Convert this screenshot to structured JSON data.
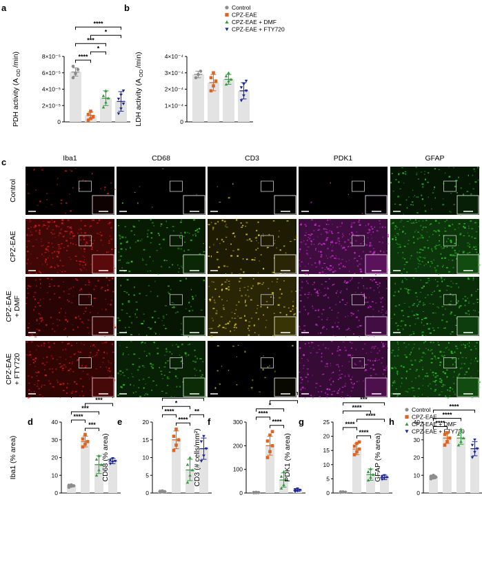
{
  "panel_letters": [
    "a",
    "b",
    "c",
    "d",
    "e",
    "f",
    "g",
    "h"
  ],
  "legend": [
    {
      "label": "Control",
      "color": "#8c8c8c",
      "marker": "circle"
    },
    {
      "label": "CPZ-EAE",
      "color": "#e0641e",
      "marker": "square"
    },
    {
      "label": "CPZ-EAE + DMF",
      "color": "#2e9e3a",
      "marker": "triangle-up"
    },
    {
      "label": "CPZ-EAE + FTY720",
      "color": "#1e2896",
      "marker": "triangle-down"
    }
  ],
  "micrograph_grid": {
    "columns": [
      "Iba1",
      "CD68",
      "CD3",
      "PDK1",
      "GFAP"
    ],
    "rows": [
      "Control",
      "CPZ-EAE",
      "CPZ-EAE\n+ DMF",
      "CPZ-EAE\n+ FTY720"
    ],
    "stain_colors": [
      "#e01818",
      "#34c41e",
      "#e8d31a",
      "#d22bd4",
      "#2ec42a"
    ],
    "intensity": [
      [
        0.15,
        0.03,
        0.02,
        0.02,
        0.35
      ],
      [
        0.9,
        0.45,
        0.4,
        0.95,
        0.85
      ],
      [
        0.55,
        0.35,
        0.55,
        0.7,
        0.7
      ],
      [
        0.7,
        0.5,
        0.1,
        0.8,
        0.85
      ]
    ]
  },
  "chart_data": [
    {
      "id": "a",
      "type": "bar",
      "ylabel": "PDH activity (A OD /min)",
      "ylabel_parts": [
        "PDH activity (A",
        "OD",
        "/min)"
      ],
      "yticks": [
        "0",
        "2×10⁻⁵",
        "4×10⁻⁵",
        "6×10⁻⁵",
        "8×10⁻⁵"
      ],
      "ylim": [
        0,
        8e-05
      ],
      "tick_values": [
        0,
        2e-05,
        4e-05,
        6e-05,
        8e-05
      ],
      "series": [
        {
          "name": "Control",
          "mean": 6.1e-05,
          "sd": 5e-06,
          "points": [
            5.4e-05,
            5.9e-05,
            6.4e-05,
            6.8e-05
          ]
        },
        {
          "name": "CPZ-EAE",
          "mean": 8e-06,
          "sd": 4e-06,
          "points": [
            2e-06,
            4e-06,
            6e-06,
            9e-06,
            1.3e-05
          ]
        },
        {
          "name": "CPZ-EAE + DMF",
          "mean": 2.9e-05,
          "sd": 9e-06,
          "points": [
            1.8e-05,
            2.4e-05,
            2.9e-05,
            3.2e-05,
            3.8e-05
          ]
        },
        {
          "name": "CPZ-EAE + FTY720",
          "mean": 2.5e-05,
          "sd": 1.2e-05,
          "points": [
            1e-05,
            1.6e-05,
            2.2e-05,
            2.8e-05,
            3.3e-05,
            3.8e-05
          ]
        }
      ],
      "sig": [
        {
          "a": 0,
          "b": 3,
          "label": "****"
        },
        {
          "a": 0,
          "b": 2,
          "label": "***"
        },
        {
          "a": 0,
          "b": 1,
          "label": "****"
        },
        {
          "a": 1,
          "b": 3,
          "label": "*"
        },
        {
          "a": 1,
          "b": 2,
          "label": "*"
        }
      ]
    },
    {
      "id": "b",
      "type": "bar",
      "ylabel": "LDH activity (A OD /min)",
      "ylabel_parts": [
        "LDH activity (A",
        "OD",
        "/min)"
      ],
      "yticks": [
        "0",
        "1×10⁻⁴",
        "2×10⁻⁴",
        "3×10⁻⁴",
        "4×10⁻⁴"
      ],
      "ylim": [
        0,
        0.0004
      ],
      "tick_values": [
        0,
        0.0001,
        0.0002,
        0.0003,
        0.0004
      ],
      "series": [
        {
          "name": "Control",
          "mean": 0.00029,
          "sd": 2e-05,
          "points": [
            0.00027,
            0.00029,
            0.00031
          ]
        },
        {
          "name": "CPZ-EAE",
          "mean": 0.00024,
          "sd": 5e-05,
          "points": [
            0.00019,
            0.00022,
            0.00025,
            0.00027,
            0.0003
          ]
        },
        {
          "name": "CPZ-EAE + DMF",
          "mean": 0.00026,
          "sd": 3e-05,
          "points": [
            0.00023,
            0.00025,
            0.00026,
            0.00028,
            0.0003
          ]
        },
        {
          "name": "CPZ-EAE + FTY720",
          "mean": 0.00019,
          "sd": 5e-05,
          "points": [
            0.00013,
            0.00016,
            0.00019,
            0.00021,
            0.00023,
            0.00025
          ]
        }
      ],
      "sig": []
    },
    {
      "id": "d",
      "type": "bar",
      "ylabel": "Iba1 (% area)",
      "yticks": [
        "0",
        "10",
        "20",
        "30",
        "40"
      ],
      "ylim": [
        0,
        40
      ],
      "tick_values": [
        0,
        10,
        20,
        30,
        40
      ],
      "series": [
        {
          "name": "Control",
          "mean": 4,
          "sd": 0.6,
          "points": [
            3.2,
            3.8,
            4.1,
            4.4,
            4.6
          ]
        },
        {
          "name": "CPZ-EAE",
          "mean": 29,
          "sd": 3,
          "points": [
            26,
            27.5,
            29,
            30.5,
            33
          ]
        },
        {
          "name": "CPZ-EAE + DMF",
          "mean": 16,
          "sd": 5,
          "points": [
            10,
            13,
            16,
            19,
            21
          ]
        },
        {
          "name": "CPZ-EAE + FTY720",
          "mean": 18,
          "sd": 1.5,
          "points": [
            16.5,
            17.5,
            18,
            18.5,
            19.5
          ]
        }
      ],
      "sig": [
        {
          "a": 0,
          "b": 3,
          "label": "****"
        },
        {
          "a": 0,
          "b": 2,
          "label": "***"
        },
        {
          "a": 1,
          "b": 2,
          "label": "***"
        },
        {
          "a": 0,
          "b": 1,
          "label": "****"
        },
        {
          "a": 1,
          "b": 3,
          "label": "***"
        }
      ]
    },
    {
      "id": "e",
      "type": "bar",
      "ylabel": "CD68 (% area)",
      "yticks": [
        "0",
        "5",
        "10",
        "15",
        "20"
      ],
      "ylim": [
        0,
        20
      ],
      "tick_values": [
        0,
        5,
        10,
        15,
        20
      ],
      "series": [
        {
          "name": "Control",
          "mean": 0.4,
          "sd": 0.2,
          "points": [
            0.2,
            0.3,
            0.4,
            0.5,
            0.6
          ]
        },
        {
          "name": "CPZ-EAE",
          "mean": 15,
          "sd": 2.5,
          "points": [
            12,
            13.5,
            15,
            16,
            18
          ]
        },
        {
          "name": "CPZ-EAE + DMF",
          "mean": 6.5,
          "sd": 3,
          "points": [
            3,
            5,
            6.5,
            8,
            10
          ]
        },
        {
          "name": "CPZ-EAE + FTY720",
          "mean": 12.5,
          "sd": 3,
          "points": [
            9,
            10.5,
            12.5,
            14.5,
            16
          ]
        }
      ],
      "sig": [
        {
          "a": 0,
          "b": 3,
          "label": "****"
        },
        {
          "a": 0,
          "b": 2,
          "label": "*"
        },
        {
          "a": 1,
          "b": 2,
          "label": "****"
        },
        {
          "a": 0,
          "b": 1,
          "label": "****"
        },
        {
          "a": 2,
          "b": 3,
          "label": "**"
        }
      ]
    },
    {
      "id": "f",
      "type": "bar",
      "ylabel": "CD3 (# cells/mm²)",
      "yticks": [
        "0",
        "100",
        "200",
        "300"
      ],
      "ylim": [
        0,
        300
      ],
      "tick_values": [
        0,
        100,
        200,
        300
      ],
      "series": [
        {
          "name": "Control",
          "mean": 2,
          "sd": 1,
          "points": [
            1,
            1.5,
            2,
            2.5,
            3
          ]
        },
        {
          "name": "CPZ-EAE",
          "mean": 200,
          "sd": 40,
          "points": [
            150,
            175,
            200,
            220,
            245,
            260
          ]
        },
        {
          "name": "CPZ-EAE + DMF",
          "mean": 55,
          "sd": 30,
          "points": [
            20,
            35,
            55,
            70,
            90
          ]
        },
        {
          "name": "CPZ-EAE + FTY720",
          "mean": 12,
          "sd": 5,
          "points": [
            6,
            9,
            12,
            15,
            18
          ]
        }
      ],
      "sig": [
        {
          "a": 0,
          "b": 3,
          "label": "****"
        },
        {
          "a": 0,
          "b": 2,
          "label": "*"
        },
        {
          "a": 1,
          "b": 2,
          "label": "****"
        },
        {
          "a": 0,
          "b": 1,
          "label": "****"
        },
        {
          "a": 1,
          "b": 3,
          "label": "****"
        }
      ]
    },
    {
      "id": "g",
      "type": "bar",
      "ylabel": "PDK1 (% area)",
      "yticks": [
        "0",
        "5",
        "10",
        "15",
        "20",
        "25"
      ],
      "ylim": [
        0,
        25
      ],
      "tick_values": [
        0,
        5,
        10,
        15,
        20,
        25
      ],
      "series": [
        {
          "name": "Control",
          "mean": 0.3,
          "sd": 0.1,
          "points": [
            0.2,
            0.3,
            0.3,
            0.4,
            0.4
          ]
        },
        {
          "name": "CPZ-EAE",
          "mean": 15.5,
          "sd": 2,
          "points": [
            13.5,
            14.5,
            15.5,
            16.5,
            17.5,
            18
          ]
        },
        {
          "name": "CPZ-EAE + DMF",
          "mean": 6.5,
          "sd": 2,
          "points": [
            4.5,
            5.5,
            6.5,
            7.5,
            8.5
          ]
        },
        {
          "name": "CPZ-EAE + FTY720",
          "mean": 5.5,
          "sd": 0.8,
          "points": [
            4.8,
            5.2,
            5.5,
            5.8,
            6.2
          ]
        }
      ],
      "sig": [
        {
          "a": 0,
          "b": 3,
          "label": "***"
        },
        {
          "a": 1,
          "b": 3,
          "label": "****"
        },
        {
          "a": 0,
          "b": 2,
          "label": "****"
        },
        {
          "a": 1,
          "b": 2,
          "label": "****"
        },
        {
          "a": 0,
          "b": 1,
          "label": "****"
        }
      ]
    },
    {
      "id": "h",
      "type": "bar",
      "ylabel": "GFAP (% area)",
      "yticks": [
        "0",
        "10",
        "20",
        "30",
        "40"
      ],
      "ylim": [
        0,
        40
      ],
      "tick_values": [
        0,
        10,
        20,
        30,
        40
      ],
      "series": [
        {
          "name": "Control",
          "mean": 9,
          "sd": 1,
          "points": [
            8,
            8.5,
            9,
            9.5,
            10
          ]
        },
        {
          "name": "CPZ-EAE",
          "mean": 31,
          "sd": 3,
          "points": [
            27,
            29,
            31,
            33,
            34
          ]
        },
        {
          "name": "CPZ-EAE + DMF",
          "mean": 31,
          "sd": 3.5,
          "points": [
            27,
            29,
            31,
            33,
            36
          ]
        },
        {
          "name": "CPZ-EAE + FTY720",
          "mean": 25,
          "sd": 4,
          "points": [
            20,
            23,
            25,
            27,
            30
          ]
        }
      ],
      "sig": [
        {
          "a": 0,
          "b": 3,
          "label": "****"
        },
        {
          "a": 0,
          "b": 2,
          "label": "****"
        },
        {
          "a": 0,
          "b": 1,
          "label": "****"
        }
      ]
    }
  ]
}
